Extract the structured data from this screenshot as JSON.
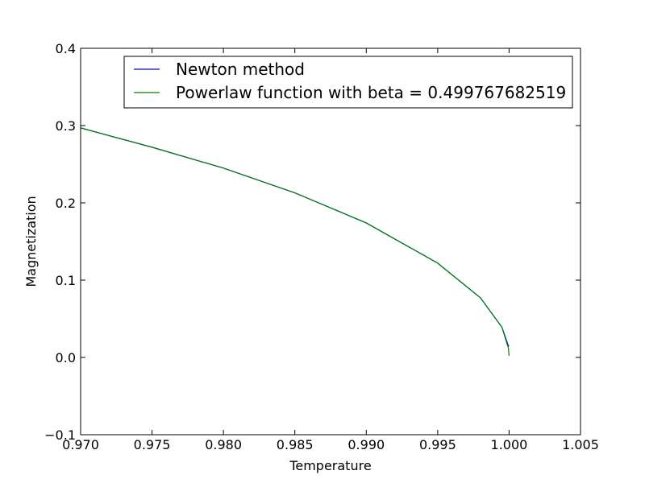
{
  "chart_data": {
    "type": "line",
    "title": "",
    "xlabel": "Temperature",
    "ylabel": "Magnetization",
    "xlim": [
      0.97,
      1.005
    ],
    "ylim": [
      -0.1,
      0.4
    ],
    "xticks": [
      "0.970",
      "0.975",
      "0.980",
      "0.985",
      "0.990",
      "0.995",
      "1.000",
      "1.005"
    ],
    "yticks": [
      "−0.1",
      "0.0",
      "0.1",
      "0.2",
      "0.3",
      "0.4"
    ],
    "grid": false,
    "legend": {
      "placement": "upper-center",
      "entries": [
        {
          "label": "Newton method",
          "color": "#0000ff"
        },
        {
          "label": "Powerlaw function with beta = 0.499767682519",
          "color": "#008000"
        }
      ]
    },
    "series": [
      {
        "name": "Newton method",
        "color": "#0000ff",
        "x": [
          0.97,
          0.975,
          0.98,
          0.985,
          0.99,
          0.995,
          0.998,
          0.9995,
          0.99995,
          1.0
        ],
        "y": [
          0.297,
          0.272,
          0.245,
          0.213,
          0.174,
          0.122,
          0.077,
          0.039,
          0.015,
          0.015
        ]
      },
      {
        "name": "Powerlaw function with beta = 0.499767682519",
        "color": "#008000",
        "x": [
          0.97,
          0.975,
          0.98,
          0.985,
          0.99,
          0.995,
          0.998,
          0.9995,
          0.99995,
          1.0
        ],
        "y": [
          0.297,
          0.272,
          0.245,
          0.213,
          0.174,
          0.122,
          0.077,
          0.039,
          0.012,
          0.002
        ]
      }
    ]
  }
}
